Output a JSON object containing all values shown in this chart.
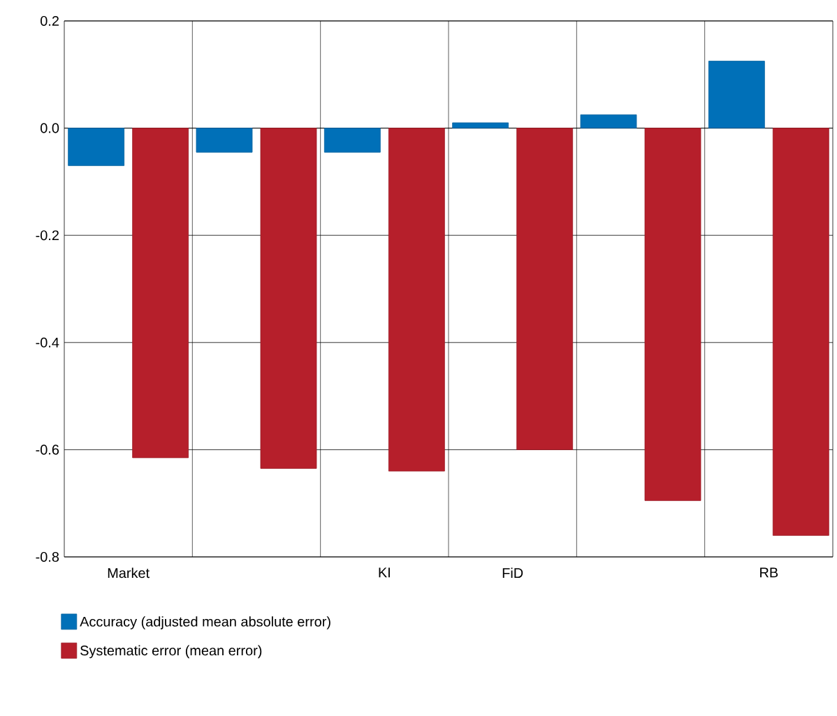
{
  "chart_data": {
    "type": "bar",
    "categories": [
      "Market",
      null,
      "KI",
      "FiD",
      null,
      "RB"
    ],
    "series": [
      {
        "name": "Accuracy (adjusted mean absolute error)",
        "color": "#0070b8",
        "values": [
          -0.07,
          -0.045,
          -0.045,
          0.01,
          0.025,
          0.125
        ]
      },
      {
        "name": "Systematic error (mean error)",
        "color": "#b61f2b",
        "values": [
          -0.615,
          -0.635,
          -0.64,
          -0.6,
          -0.695,
          -0.76
        ]
      }
    ],
    "ylim": [
      -0.8,
      0.2
    ],
    "yticks": [
      0.2,
      {
        "value": 0,
        "label": "0.0"
      },
      -0.2,
      -0.4,
      -0.6,
      -0.8
    ],
    "grid": true,
    "legend": "bottom"
  }
}
